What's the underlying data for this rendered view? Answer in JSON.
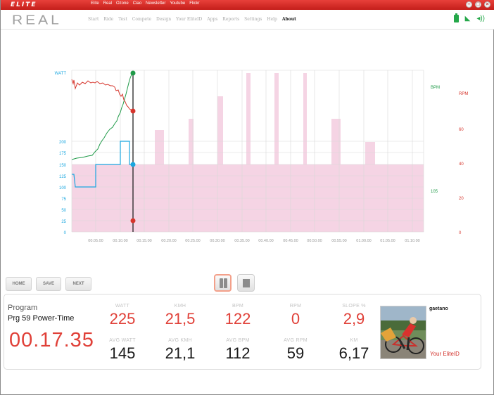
{
  "topbar": {
    "brand": "ELITE",
    "links": [
      "Elite",
      "Real",
      "Ozone",
      "Ciao",
      "Newsletter",
      "Youtube",
      "Flickr"
    ]
  },
  "header": {
    "logo": "REAL",
    "nav": [
      "Start",
      "Ride",
      "Test",
      "Compete",
      "Design",
      "Your EliteID",
      "Apps",
      "Reports",
      "Settings",
      "Help",
      "About"
    ],
    "active_nav": "About"
  },
  "chart": {
    "left_axis_label": "WATT",
    "right_axis_label": "BPM",
    "rpm_axis_label": "RPM",
    "watt_ticks": [
      "200",
      "175",
      "150",
      "125",
      "100",
      "75",
      "50",
      "25",
      "0"
    ],
    "bpm_tick": "105",
    "rpm_ticks": [
      "60",
      "40",
      "20",
      "0"
    ],
    "x_ticks": [
      "00.05.00",
      "00.10.00",
      "00.15.00",
      "00.20.00",
      "00.25.00",
      "00.30.00",
      "00.35.00",
      "00.40.00",
      "00.45.00",
      "00.50.00",
      "00.55.00",
      "01.00.00",
      "01.05.00",
      "01.10.00"
    ],
    "colors": {
      "watt": "#1aa7e0",
      "bpm": "#1f9a48",
      "rpm": "#d6352c",
      "program": "#f5d4e4",
      "cursor": "#222222"
    }
  },
  "buttons": {
    "home": "HOME",
    "save": "SAVE",
    "next": "NEXT"
  },
  "stats": {
    "program_label": "Program",
    "program_name": "Prg 59 Power-Time",
    "elapsed": "00.17.35",
    "current": [
      {
        "label": "WATT",
        "value": "225"
      },
      {
        "label": "KMH",
        "value": "21,5"
      },
      {
        "label": "BPM",
        "value": "122"
      },
      {
        "label": "RPM",
        "value": "0"
      },
      {
        "label": "SLOPE %",
        "value": "2,9"
      }
    ],
    "averages": [
      {
        "label": "AVG WATT",
        "value": "145"
      },
      {
        "label": "AVG KMH",
        "value": "21,1"
      },
      {
        "label": "AVG BPM",
        "value": "112"
      },
      {
        "label": "AVG RPM",
        "value": "59"
      },
      {
        "label": "KM",
        "value": "6,17"
      }
    ]
  },
  "user": {
    "name": "gaetano",
    "link": "Your EliteID"
  }
}
